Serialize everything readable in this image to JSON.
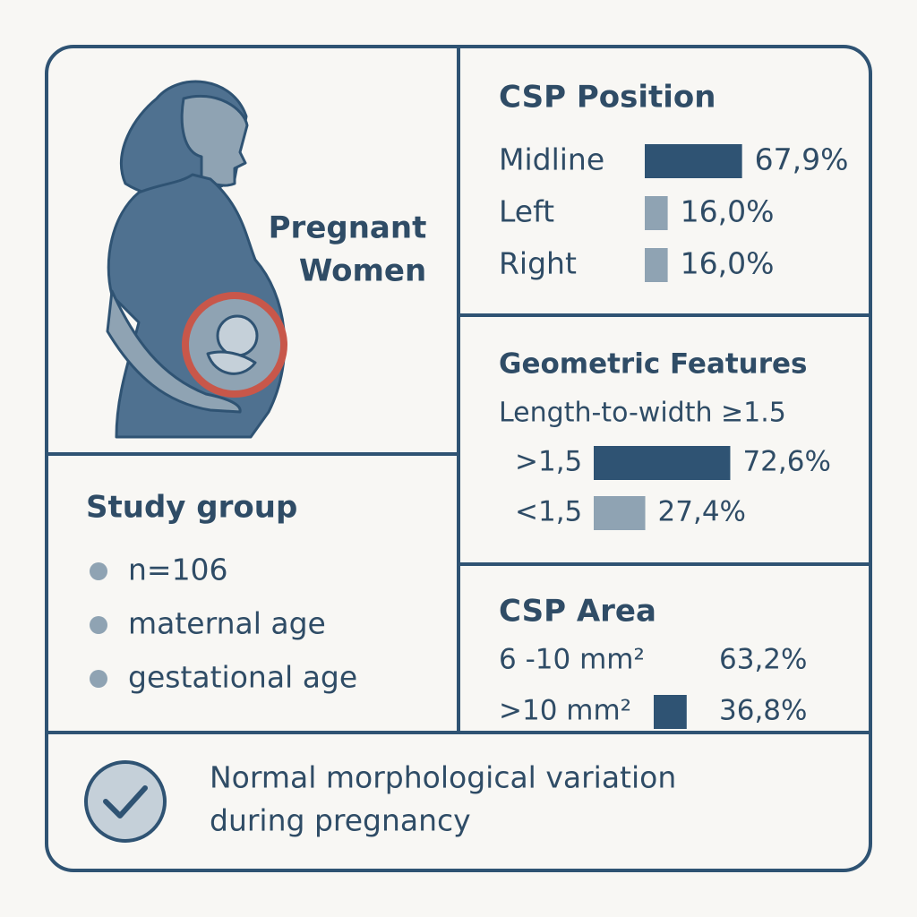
{
  "illustration": {
    "label_lines": [
      "Pregnant",
      "Women"
    ]
  },
  "study_group": {
    "title": "Study group",
    "items": [
      "n=106",
      "maternal age",
      "gestational age"
    ]
  },
  "csp_position": {
    "title": "CSP Position",
    "rows": [
      {
        "label": "Midline",
        "value": 67.9,
        "value_label": "67,9%",
        "color": "#2f5373"
      },
      {
        "label": "Left",
        "value": 16.0,
        "value_label": "16,0%",
        "color": "#8fa3b3"
      },
      {
        "label": "Right",
        "value": 16.0,
        "value_label": "16,0%",
        "color": "#8fa3b3"
      }
    ]
  },
  "geometric_features": {
    "title": "Geometric Features",
    "subtitle": "Length-to-width ≥1.5",
    "rows": [
      {
        "label": ">1,5",
        "value": 72.6,
        "value_label": "72,6%",
        "color": "#2f5373"
      },
      {
        "label": "<1,5",
        "value": 27.4,
        "value_label": "27,4%",
        "color": "#8fa3b3"
      }
    ]
  },
  "csp_area": {
    "title": "CSP Area",
    "rows": [
      {
        "label": "6 -10 mm²",
        "value": 63.2,
        "value_label": "63,2%",
        "color": "#f8f7f4"
      },
      {
        "label": ">10 mm²",
        "value": 36.8,
        "value_label": "36,8%",
        "color": "#2f5373"
      }
    ]
  },
  "conclusion": {
    "lines": [
      "Normal morphological variation",
      "during pregnancy"
    ]
  }
}
